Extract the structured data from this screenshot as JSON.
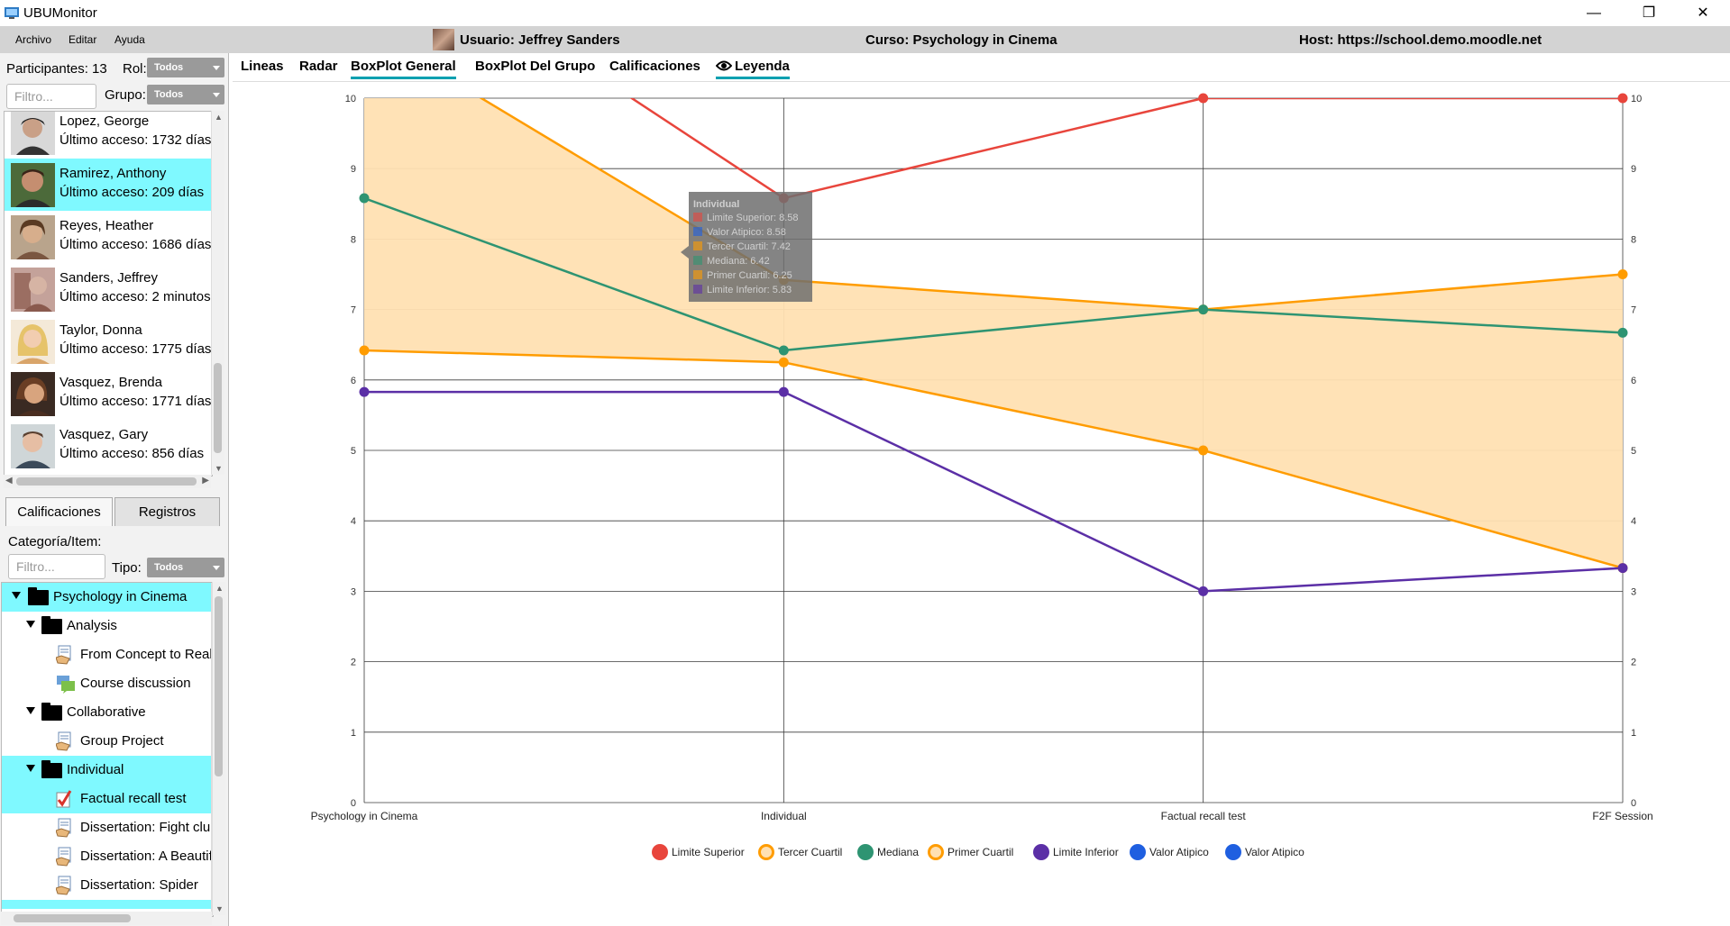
{
  "app": {
    "title": "UBUMonitor"
  },
  "window_controls": {
    "minimize": "—",
    "maximize": "❐",
    "close": "✕"
  },
  "menu": {
    "items": [
      "Archivo",
      "Editar",
      "Ayuda"
    ]
  },
  "header": {
    "user": "Usuario: Jeffrey Sanders",
    "course": "Curso: Psychology in Cinema",
    "host": "Host: https://school.demo.moodle.net"
  },
  "participants": {
    "count_label": "Participantes: 13",
    "role_label": "Rol:",
    "role_value": "Todos",
    "filter_placeholder": "Filtro...",
    "group_label": "Grupo:",
    "group_value": "Todos",
    "users": [
      {
        "name": "Lopez, George",
        "access": "Último acceso: 1732 días",
        "selected": false
      },
      {
        "name": "Ramirez, Anthony",
        "access": "Último acceso: 209 días",
        "selected": true
      },
      {
        "name": "Reyes, Heather",
        "access": "Último acceso: 1686 días",
        "selected": false
      },
      {
        "name": "Sanders, Jeffrey",
        "access": "Último acceso: 2 minutos",
        "selected": false
      },
      {
        "name": "Taylor, Donna",
        "access": "Último acceso: 1775 días",
        "selected": false
      },
      {
        "name": "Vasquez, Brenda",
        "access": "Último acceso: 1771 días",
        "selected": false
      },
      {
        "name": "Vasquez, Gary",
        "access": "Último acceso: 856 días",
        "selected": false
      }
    ]
  },
  "lower_tabs": [
    "Calificaciones",
    "Registros"
  ],
  "grades_panel": {
    "category_label": "Categoría/Item:",
    "filter_placeholder": "Filtro...",
    "type_label": "Tipo:",
    "type_value": "Todos",
    "tree": [
      {
        "label": "Psychology in Cinema",
        "kind": "folder",
        "level": 0,
        "selected": true
      },
      {
        "label": "Analysis",
        "kind": "folder",
        "level": 1,
        "selected": false
      },
      {
        "label": "From Concept to Real",
        "kind": "assign",
        "level": 2,
        "selected": false
      },
      {
        "label": "Course discussion",
        "kind": "forum",
        "level": 2,
        "selected": false
      },
      {
        "label": "Collaborative",
        "kind": "folder",
        "level": 1,
        "selected": false
      },
      {
        "label": "Group Project",
        "kind": "assign",
        "level": 2,
        "selected": false
      },
      {
        "label": "Individual",
        "kind": "folder",
        "level": 1,
        "selected": true
      },
      {
        "label": "Factual recall test",
        "kind": "quiz",
        "level": 2,
        "selected": true
      },
      {
        "label": "Dissertation: Fight clul",
        "kind": "assign",
        "level": 2,
        "selected": false
      },
      {
        "label": "Dissertation: A Beautif",
        "kind": "assign",
        "level": 2,
        "selected": false
      },
      {
        "label": "Dissertation: Spider",
        "kind": "assign",
        "level": 2,
        "selected": false
      }
    ]
  },
  "main_tabs": [
    "Lineas",
    "Radar",
    "BoxPlot General",
    "BoxPlot Del Grupo",
    "Calificaciones",
    "Leyenda"
  ],
  "active_tab": "BoxPlot General",
  "chart_data": {
    "type": "line",
    "categories": [
      "Psychology in Cinema",
      "Individual",
      "Factual recall test",
      "F2F Session"
    ],
    "ylim": [
      0,
      10
    ],
    "yticks": [
      "0",
      "1",
      "2",
      "3",
      "4",
      "5",
      "6",
      "7",
      "8",
      "9",
      "10"
    ],
    "grid": true,
    "legend_position": "bottom",
    "colors": {
      "upper": "#e8453c",
      "q3": "#ff9c00",
      "median": "#2e9472",
      "q1": "#ff9c00",
      "lower": "#5b2fa6",
      "outlier": "#1f5fe0",
      "band": "#ffe0b2"
    },
    "series": [
      {
        "name": "Limite Superior",
        "values": [
          12.5,
          8.58,
          10,
          10
        ]
      },
      {
        "name": "Tercer Cuartil",
        "values": [
          11.0,
          7.42,
          7.0,
          7.5
        ]
      },
      {
        "name": "Mediana",
        "values": [
          8.58,
          6.42,
          7.0,
          6.67
        ]
      },
      {
        "name": "Primer Cuartil",
        "values": [
          6.42,
          6.25,
          5.0,
          3.33
        ]
      },
      {
        "name": "Limite Inferior",
        "values": [
          5.83,
          5.83,
          3.0,
          3.33
        ]
      }
    ],
    "legend": [
      "Limite Superior",
      "Tercer Cuartil",
      "Mediana",
      "Primer Cuartil",
      "Limite Inferior",
      "Valor Atipico",
      "Valor Atipico"
    ],
    "tooltip": {
      "title": "Individual",
      "items": [
        "Limite Superior: 8.58",
        "Valor Atipico: 8.58",
        "Tercer Cuartil: 7.42",
        "Mediana: 6.42",
        "Primer Cuartil: 6.25",
        "Limite Inferior: 5.83"
      ]
    }
  }
}
